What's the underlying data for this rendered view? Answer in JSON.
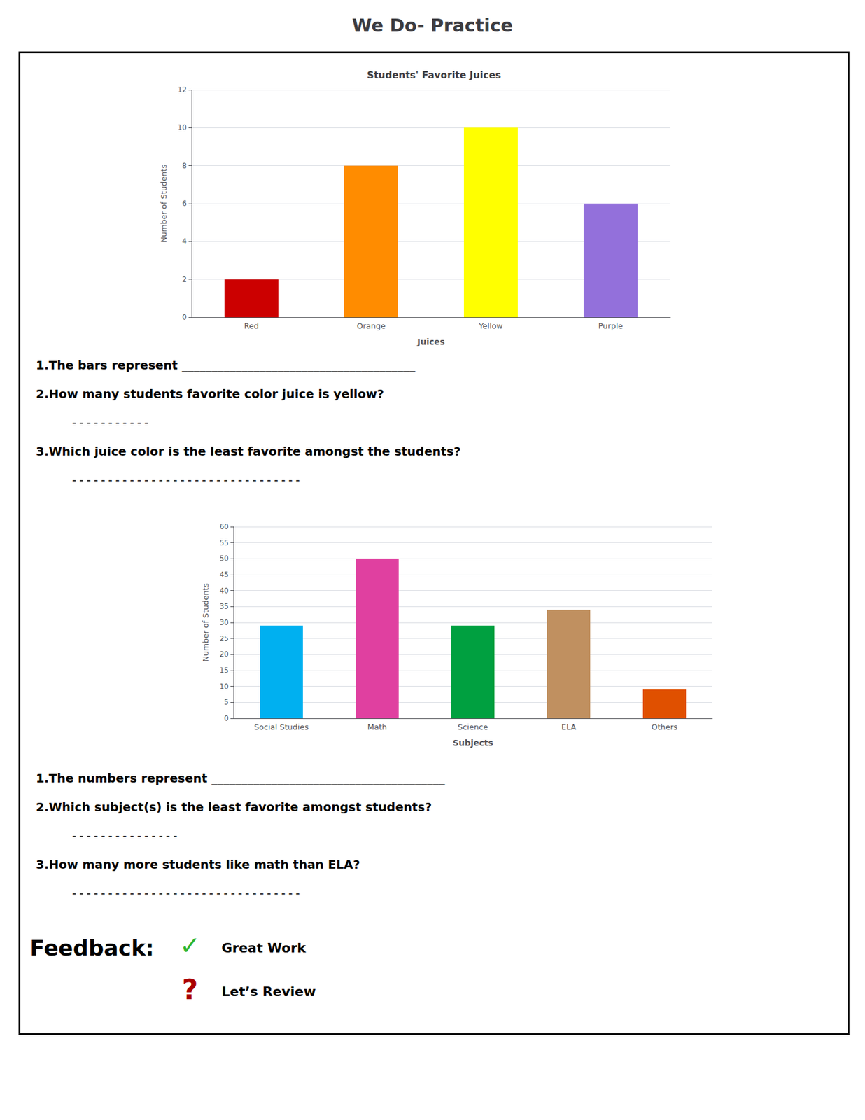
{
  "title": "We Do- Practice",
  "chart_data": [
    {
      "type": "bar",
      "title": "Students' Favorite Juices",
      "categories": [
        "Red",
        "Orange",
        "Yellow",
        "Purple"
      ],
      "values": [
        2,
        8,
        10,
        6
      ],
      "colors": [
        "#cc0000",
        "#ff8c00",
        "#ffff00",
        "#9370db"
      ],
      "xlabel": "Juices",
      "ylabel": "Number of Students",
      "ylim": [
        0,
        12
      ],
      "yticks": [
        0,
        2,
        4,
        6,
        8,
        10,
        12
      ],
      "grid": true,
      "annotations": [
        "1.The bars represent _______________________________________",
        "2.How many students favorite color juice is yellow?",
        "  -----------",
        "3.Which juice color is the least favorite amongst the students?",
        "  --------------------------------"
      ]
    },
    {
      "type": "bar",
      "categories": [
        "Social Studies",
        "Math",
        "Science",
        "ELA",
        "Others"
      ],
      "values": [
        29,
        50,
        29,
        34,
        9
      ],
      "colors": [
        "#00b0f0",
        "#e040a0",
        "#00a040",
        "#c09060",
        "#e05000"
      ],
      "xlabel": "Subjects",
      "ylabel": "Number of Students",
      "ylim": [
        0,
        60
      ],
      "yticks": [
        0,
        5,
        10,
        15,
        20,
        25,
        30,
        35,
        40,
        45,
        50,
        55,
        60
      ],
      "grid": true,
      "annotations": [
        "1.The numbers represent _______________________________________",
        "2.Which subject(s) is the least favorite amongst students?",
        "  ---------------",
        "3.How many more students like math than ELA?",
        "  --------------------------------"
      ]
    }
  ],
  "annotations": [
    "Feedback:",
    {
      "text": "✓",
      "color": "#2db52d"
    },
    "Great Work",
    {
      "text": "?",
      "color": "#aa0000"
    },
    "Let’s Review"
  ]
}
